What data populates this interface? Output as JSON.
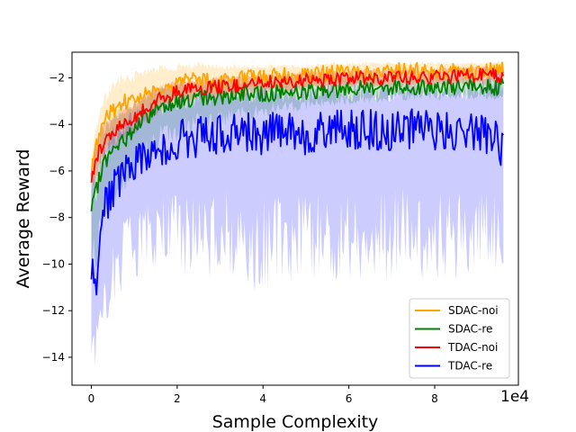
{
  "chart_data": {
    "type": "line",
    "title": "",
    "xlabel": "Sample Complexity",
    "ylabel": "Average Reward",
    "x_offset_label": "1e4",
    "xlim": [
      -0.45,
      9.95
    ],
    "ylim": [
      -15.2,
      -0.9
    ],
    "x_ticks": [
      0,
      2,
      4,
      6,
      8
    ],
    "x_tick_labels": [
      "0",
      "2",
      "4",
      "6",
      "8"
    ],
    "y_ticks": [
      -14,
      -12,
      -10,
      -8,
      -6,
      -4,
      -2
    ],
    "y_tick_labels": [
      "−14",
      "−12",
      "−10",
      "−8",
      "−6",
      "−4",
      "−2"
    ],
    "grid": false,
    "legend_position": "lower-right",
    "series": [
      {
        "name": "SDAC-noi",
        "color": "#ffa500",
        "x": [
          0.0,
          0.1,
          0.2,
          0.3,
          0.5,
          0.7,
          1.0,
          1.3,
          1.6,
          2.0,
          2.5,
          3.0,
          3.5,
          4.0,
          4.5,
          5.0,
          5.5,
          6.0,
          6.5,
          7.0,
          7.5,
          8.0,
          8.5,
          9.0,
          9.6
        ],
        "y": [
          -6.0,
          -5.0,
          -4.4,
          -3.9,
          -3.4,
          -3.1,
          -2.9,
          -2.6,
          -2.4,
          -2.2,
          -2.1,
          -2.2,
          -2.0,
          -1.9,
          -1.9,
          -1.9,
          -1.8,
          -1.8,
          -1.8,
          -1.7,
          -1.7,
          -1.7,
          -1.7,
          -1.7,
          -1.6
        ],
        "band_low": [
          -6.8,
          -6.0,
          -5.5,
          -5.0,
          -4.6,
          -4.3,
          -4.0,
          -3.6,
          -3.3,
          -3.0,
          -2.9,
          -3.0,
          -2.7,
          -2.5,
          -2.5,
          -2.4,
          -2.3,
          -2.3,
          -2.3,
          -2.2,
          -2.2,
          -2.2,
          -2.2,
          -2.2,
          -2.1
        ],
        "band_high": [
          -5.2,
          -4.0,
          -3.2,
          -2.6,
          -2.1,
          -1.8,
          -1.7,
          -1.5,
          -1.4,
          -1.4,
          -1.3,
          -1.4,
          -1.4,
          -1.4,
          -1.4,
          -1.4,
          -1.3,
          -1.3,
          -1.3,
          -1.3,
          -1.3,
          -1.3,
          -1.3,
          -1.3,
          -1.2
        ]
      },
      {
        "name": "SDAC-re",
        "color": "#008000",
        "x": [
          0.0,
          0.1,
          0.2,
          0.3,
          0.5,
          0.7,
          1.0,
          1.3,
          1.6,
          2.0,
          2.5,
          3.0,
          3.5,
          4.0,
          4.5,
          5.0,
          5.5,
          6.0,
          6.5,
          7.0,
          7.5,
          8.0,
          8.5,
          9.0,
          9.6
        ],
        "y": [
          -7.8,
          -7.0,
          -6.2,
          -5.6,
          -5.2,
          -4.8,
          -4.2,
          -3.7,
          -3.2,
          -3.0,
          -2.9,
          -2.8,
          -2.7,
          -2.7,
          -2.6,
          -2.6,
          -2.5,
          -2.5,
          -2.4,
          -2.4,
          -2.4,
          -2.4,
          -2.4,
          -2.4,
          -2.4
        ],
        "band_low": [
          -11.0,
          -10.0,
          -9.2,
          -8.4,
          -7.6,
          -7.0,
          -6.2,
          -5.6,
          -5.0,
          -4.6,
          -4.2,
          -4.0,
          -3.8,
          -3.6,
          -3.4,
          -3.3,
          -3.2,
          -3.1,
          -3.0,
          -3.0,
          -2.9,
          -2.9,
          -2.9,
          -2.9,
          -2.9
        ],
        "band_high": [
          -5.5,
          -4.8,
          -4.2,
          -3.8,
          -3.5,
          -3.2,
          -2.9,
          -2.6,
          -2.3,
          -2.2,
          -2.1,
          -2.0,
          -2.0,
          -2.0,
          -1.9,
          -1.9,
          -1.9,
          -1.9,
          -1.9,
          -1.9,
          -1.9,
          -1.9,
          -1.9,
          -1.9,
          -1.9
        ]
      },
      {
        "name": "TDAC-noi",
        "color": "#ff0000",
        "x": [
          0.0,
          0.1,
          0.2,
          0.3,
          0.5,
          0.7,
          1.0,
          1.3,
          1.6,
          2.0,
          2.5,
          3.0,
          3.5,
          4.0,
          4.5,
          5.0,
          5.5,
          6.0,
          6.5,
          7.0,
          7.5,
          8.0,
          8.5,
          9.0,
          9.6
        ],
        "y": [
          -6.3,
          -5.6,
          -5.1,
          -4.7,
          -4.4,
          -4.1,
          -3.7,
          -3.3,
          -2.9,
          -2.6,
          -2.5,
          -2.4,
          -2.3,
          -2.2,
          -2.2,
          -2.1,
          -2.1,
          -2.0,
          -2.0,
          -2.0,
          -2.0,
          -2.0,
          -1.9,
          -1.9,
          -1.9
        ],
        "band_low": [
          -7.0,
          -6.4,
          -5.9,
          -5.5,
          -5.1,
          -4.8,
          -4.4,
          -4.0,
          -3.5,
          -3.1,
          -3.0,
          -2.9,
          -2.8,
          -2.7,
          -2.6,
          -2.5,
          -2.5,
          -2.4,
          -2.4,
          -2.4,
          -2.4,
          -2.4,
          -2.3,
          -2.3,
          -2.3
        ],
        "band_high": [
          -5.6,
          -4.8,
          -4.3,
          -3.9,
          -3.6,
          -3.4,
          -3.0,
          -2.6,
          -2.3,
          -2.1,
          -2.0,
          -1.9,
          -1.9,
          -1.8,
          -1.8,
          -1.7,
          -1.7,
          -1.6,
          -1.6,
          -1.6,
          -1.6,
          -1.6,
          -1.5,
          -1.5,
          -1.5
        ]
      },
      {
        "name": "TDAC-re",
        "color": "#0000ff",
        "x": [
          0.0,
          0.1,
          0.2,
          0.3,
          0.5,
          0.7,
          1.0,
          1.3,
          1.6,
          2.0,
          2.5,
          3.0,
          3.5,
          4.0,
          4.5,
          5.0,
          5.5,
          6.0,
          6.5,
          7.0,
          7.5,
          8.0,
          8.5,
          9.0,
          9.6
        ],
        "y": [
          -10.0,
          -11.2,
          -9.3,
          -7.6,
          -6.8,
          -6.2,
          -5.9,
          -5.3,
          -5.0,
          -4.7,
          -4.5,
          -4.4,
          -4.3,
          -4.4,
          -4.3,
          -4.4,
          -4.2,
          -4.3,
          -4.2,
          -4.3,
          -4.2,
          -4.2,
          -4.3,
          -4.2,
          -5.0
        ],
        "band_low": [
          -14.3,
          -14.0,
          -13.0,
          -12.2,
          -11.2,
          -10.6,
          -10.0,
          -9.8,
          -9.6,
          -9.8,
          -10.0,
          -9.8,
          -10.0,
          -10.6,
          -10.2,
          -10.0,
          -10.0,
          -10.2,
          -9.8,
          -10.0,
          -9.8,
          -9.9,
          -10.0,
          -9.6,
          -9.6
        ],
        "band_high": [
          -6.5,
          -5.5,
          -5.0,
          -4.5,
          -4.0,
          -3.6,
          -3.3,
          -3.0,
          -2.8,
          -2.6,
          -2.5,
          -2.4,
          -2.4,
          -2.3,
          -2.3,
          -2.3,
          -2.2,
          -2.2,
          -2.2,
          -2.2,
          -2.1,
          -2.1,
          -2.1,
          -2.1,
          -1.1
        ]
      }
    ]
  }
}
